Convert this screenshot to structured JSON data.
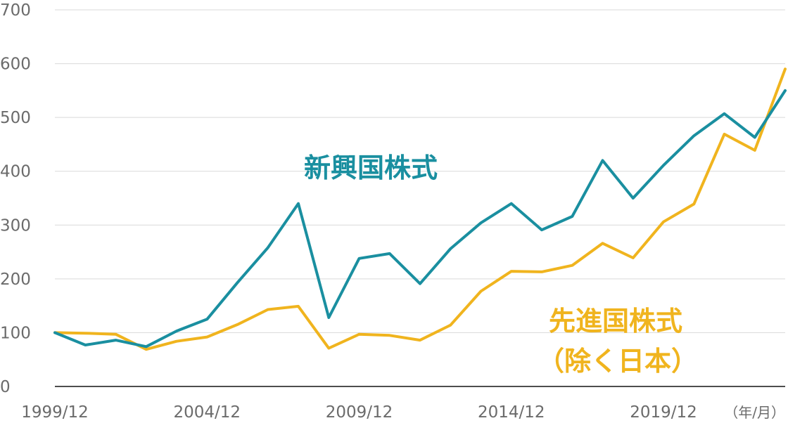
{
  "colors": {
    "emerging": "#1a8fa0",
    "developed": "#f0b41e",
    "grid": "#d9d9d9",
    "axis": "#4d4d4d",
    "tick": "#6b6b6b"
  },
  "chart_data": {
    "type": "line",
    "x_unit_label": "（年/月）",
    "x": [
      "1999/12",
      "2000/12",
      "2001/12",
      "2002/12",
      "2003/12",
      "2004/12",
      "2005/12",
      "2006/12",
      "2007/12",
      "2008/12",
      "2009/12",
      "2010/12",
      "2011/12",
      "2012/12",
      "2013/12",
      "2014/12",
      "2015/12",
      "2016/12",
      "2017/12",
      "2018/12",
      "2019/12",
      "2020/12",
      "2021/12",
      "2022/12",
      "2023/12"
    ],
    "x_tick_labels": [
      "1999/12",
      "2004/12",
      "2009/12",
      "2014/12",
      "2019/12"
    ],
    "y_ticks": [
      0,
      100,
      200,
      300,
      400,
      500,
      600,
      700
    ],
    "ylim": [
      0,
      700
    ],
    "grid": true,
    "series": [
      {
        "name": "新興国株式",
        "color": "#1a8fa0",
        "values": [
          100,
          77,
          86,
          74,
          103,
          125,
          193,
          258,
          340,
          128,
          238,
          247,
          191,
          256,
          304,
          340,
          291,
          316,
          420,
          350,
          411,
          466,
          507,
          463,
          550
        ]
      },
      {
        "name": "先進国株式（除く日本）",
        "color": "#f0b41e",
        "values": [
          100,
          99,
          97,
          69,
          84,
          92,
          115,
          143,
          149,
          71,
          97,
          95,
          86,
          114,
          177,
          214,
          213,
          225,
          266,
          239,
          306,
          339,
          469,
          439,
          590
        ]
      }
    ],
    "labels": {
      "emerging": "新興国株式",
      "developed_line1": "先進国株式",
      "developed_line2": "（除く日本）"
    }
  }
}
